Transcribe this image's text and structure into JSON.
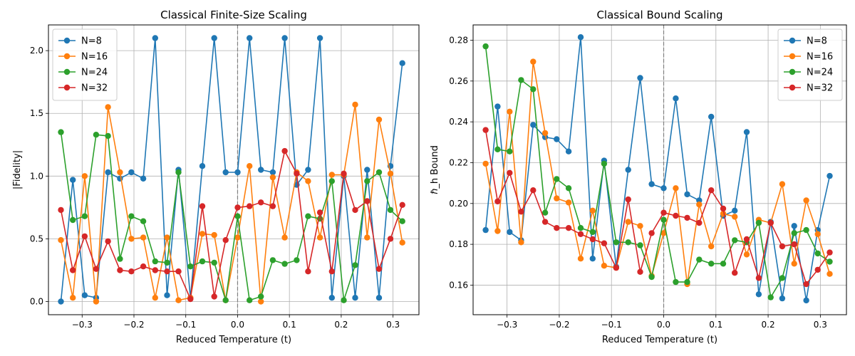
{
  "chart_data": [
    {
      "type": "line",
      "title": "Classical Finite-Size Scaling",
      "xlabel": "Reduced Temperature (t)",
      "ylabel": "|Fidelity|",
      "xlim": [
        -0.365,
        0.35
      ],
      "ylim": [
        -0.105,
        2.205
      ],
      "xticks": [
        -0.3,
        -0.2,
        -0.1,
        0.0,
        0.1,
        0.2,
        0.3
      ],
      "xtick_labels": [
        "−0.3",
        "−0.2",
        "−0.1",
        "0.0",
        "0.1",
        "0.2",
        "0.3"
      ],
      "yticks": [
        0.0,
        0.5,
        1.0,
        1.5,
        2.0
      ],
      "ytick_labels": [
        "0.0",
        "0.5",
        "1.0",
        "1.5",
        "2.0"
      ],
      "grid": true,
      "legend_position": "upper-left",
      "critical_line_x": 0.0,
      "x": [
        -0.341,
        -0.318,
        -0.295,
        -0.273,
        -0.25,
        -0.227,
        -0.205,
        -0.182,
        -0.159,
        -0.136,
        -0.114,
        -0.091,
        -0.068,
        -0.045,
        -0.023,
        0.0,
        0.023,
        0.045,
        0.068,
        0.091,
        0.114,
        0.136,
        0.159,
        0.182,
        0.205,
        0.227,
        0.25,
        0.273,
        0.295,
        0.318
      ],
      "series": [
        {
          "name": "N=8",
          "color": "#1f77b4",
          "values": [
            0.0,
            0.97,
            0.05,
            0.03,
            1.03,
            0.98,
            1.03,
            0.98,
            2.1,
            0.05,
            1.05,
            0.03,
            1.08,
            2.1,
            1.03,
            1.03,
            2.1,
            1.05,
            1.03,
            2.1,
            0.93,
            1.05,
            2.1,
            0.03,
            1.0,
            0.03,
            1.05,
            0.03,
            1.08,
            1.9
          ]
        },
        {
          "name": "N=16",
          "color": "#ff7f0e",
          "values": [
            0.49,
            0.03,
            1.0,
            0.0,
            1.55,
            1.03,
            0.5,
            0.51,
            0.03,
            0.51,
            0.01,
            0.03,
            0.54,
            0.53,
            0.01,
            0.51,
            1.08,
            0.0,
            0.99,
            0.51,
            1.03,
            0.96,
            0.51,
            1.01,
            1.01,
            1.57,
            0.51,
            1.45,
            1.02,
            0.47
          ]
        },
        {
          "name": "N=24",
          "color": "#2ca02c",
          "values": [
            1.35,
            0.65,
            0.68,
            1.33,
            1.32,
            0.34,
            0.68,
            0.64,
            0.32,
            0.31,
            1.03,
            0.28,
            0.32,
            0.31,
            0.01,
            0.68,
            0.01,
            0.04,
            0.33,
            0.3,
            0.33,
            0.68,
            0.66,
            0.96,
            0.01,
            0.29,
            0.96,
            1.03,
            0.73,
            0.64
          ]
        },
        {
          "name": "N=32",
          "color": "#d62728",
          "values": [
            0.73,
            0.25,
            0.52,
            0.26,
            0.48,
            0.25,
            0.24,
            0.28,
            0.25,
            0.24,
            0.24,
            0.02,
            0.76,
            0.04,
            0.49,
            0.75,
            0.76,
            0.79,
            0.76,
            1.2,
            1.02,
            0.24,
            0.71,
            0.24,
            1.02,
            0.73,
            0.8,
            0.26,
            0.5,
            0.77
          ]
        }
      ]
    },
    {
      "type": "line",
      "title": "Classical Bound Scaling",
      "xlabel": "Reduced Temperature (t)",
      "ylabel": "ℏ_h Bound",
      "xlim": [
        -0.365,
        0.35
      ],
      "ylim": [
        0.1455,
        0.2875
      ],
      "xticks": [
        -0.3,
        -0.2,
        -0.1,
        0.0,
        0.1,
        0.2,
        0.3
      ],
      "xtick_labels": [
        "−0.3",
        "−0.2",
        "−0.1",
        "0.0",
        "0.1",
        "0.2",
        "0.3"
      ],
      "yticks": [
        0.16,
        0.18,
        0.2,
        0.22,
        0.24,
        0.26,
        0.28
      ],
      "ytick_labels": [
        "0.16",
        "0.18",
        "0.20",
        "0.22",
        "0.24",
        "0.26",
        "0.28"
      ],
      "grid": true,
      "legend_position": "upper-right",
      "critical_line_x": 0.0,
      "x": [
        -0.341,
        -0.318,
        -0.295,
        -0.273,
        -0.25,
        -0.227,
        -0.205,
        -0.182,
        -0.159,
        -0.136,
        -0.114,
        -0.091,
        -0.068,
        -0.045,
        -0.023,
        0.0,
        0.023,
        0.045,
        0.068,
        0.091,
        0.114,
        0.136,
        0.159,
        0.182,
        0.205,
        0.227,
        0.25,
        0.273,
        0.295,
        0.318
      ],
      "series": [
        {
          "name": "N=8",
          "color": "#1f77b4",
          "values": [
            0.187,
            0.2475,
            0.186,
            0.182,
            0.2385,
            0.2325,
            0.2315,
            0.2255,
            0.2815,
            0.173,
            0.221,
            0.169,
            0.2165,
            0.2615,
            0.2095,
            0.2075,
            0.2515,
            0.2045,
            0.2015,
            0.2425,
            0.194,
            0.1965,
            0.235,
            0.1555,
            0.191,
            0.1535,
            0.189,
            0.1525,
            0.187,
            0.2135
          ]
        },
        {
          "name": "N=16",
          "color": "#ff7f0e",
          "values": [
            0.2195,
            0.1865,
            0.245,
            0.181,
            0.2695,
            0.2345,
            0.2025,
            0.2005,
            0.173,
            0.1965,
            0.1695,
            0.1685,
            0.191,
            0.189,
            0.1645,
            0.1855,
            0.2075,
            0.1605,
            0.1995,
            0.179,
            0.195,
            0.1935,
            0.175,
            0.192,
            0.1905,
            0.2095,
            0.1705,
            0.2015,
            0.185,
            0.1655
          ]
        },
        {
          "name": "N=24",
          "color": "#2ca02c",
          "values": [
            0.277,
            0.2265,
            0.2255,
            0.2605,
            0.256,
            0.1955,
            0.212,
            0.2075,
            0.188,
            0.186,
            0.2195,
            0.181,
            0.181,
            0.1795,
            0.164,
            0.192,
            0.1615,
            0.1615,
            0.1725,
            0.1705,
            0.1705,
            0.182,
            0.181,
            0.1905,
            0.154,
            0.1635,
            0.1855,
            0.187,
            0.1755,
            0.1715
          ]
        },
        {
          "name": "N=32",
          "color": "#d62728",
          "values": [
            0.236,
            0.201,
            0.215,
            0.196,
            0.2065,
            0.191,
            0.188,
            0.188,
            0.185,
            0.1825,
            0.1805,
            0.1685,
            0.202,
            0.1665,
            0.1855,
            0.1955,
            0.194,
            0.193,
            0.1905,
            0.2065,
            0.1975,
            0.166,
            0.1825,
            0.1635,
            0.1905,
            0.179,
            0.18,
            0.1605,
            0.1675,
            0.176
          ]
        }
      ]
    }
  ]
}
